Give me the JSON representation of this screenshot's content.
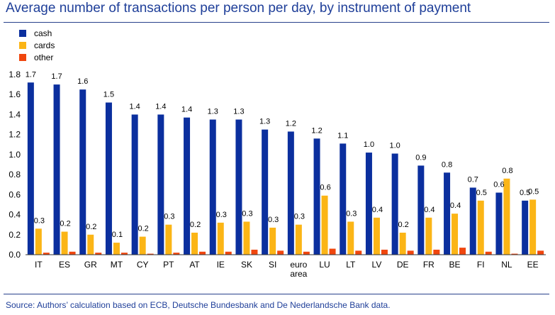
{
  "title": "Average number of transactions per person per day, by instrument of payment",
  "source": "Source: Authors’ calculation based on ECB, Deutsche Bundesbank and De Nederlandsche Bank data.",
  "colors": {
    "cash": "#0b2f9e",
    "cards": "#fbb516",
    "other": "#f0460e",
    "text": "#1f3f99",
    "axis": "#27408b"
  },
  "chart_data": {
    "type": "bar",
    "categories": [
      "IT",
      "ES",
      "GR",
      "MT",
      "CY",
      "PT",
      "AT",
      "IE",
      "SK",
      "SI",
      "euro area",
      "LU",
      "LT",
      "LV",
      "DE",
      "FR",
      "BE",
      "FI",
      "NL",
      "EE"
    ],
    "series": [
      {
        "name": "cash",
        "values": [
          1.72,
          1.7,
          1.65,
          1.52,
          1.4,
          1.4,
          1.37,
          1.35,
          1.35,
          1.25,
          1.23,
          1.16,
          1.11,
          1.02,
          1.01,
          0.89,
          0.82,
          0.67,
          0.62,
          0.54
        ],
        "labels": [
          "1.7",
          "1.7",
          "1.6",
          "1.5",
          "1.4",
          "1.4",
          "1.4",
          "1.3",
          "1.3",
          "1.3",
          "1.2",
          "1.2",
          "1.1",
          "1.0",
          "1.0",
          "0.9",
          "0.8",
          "0.7",
          "0.6",
          "0.5"
        ]
      },
      {
        "name": "cards",
        "values": [
          0.26,
          0.23,
          0.2,
          0.12,
          0.18,
          0.3,
          0.22,
          0.32,
          0.33,
          0.27,
          0.3,
          0.59,
          0.33,
          0.37,
          0.22,
          0.37,
          0.41,
          0.54,
          0.76,
          0.55
        ],
        "labels": [
          "0.3",
          "0.2",
          "0.2",
          "0.1",
          "0.2",
          "0.3",
          "0.2",
          "0.3",
          "0.3",
          "0.3",
          "0.3",
          "0.6",
          "0.3",
          "0.4",
          "0.2",
          "0.4",
          "0.4",
          "0.5",
          "0.8",
          "0.5"
        ]
      },
      {
        "name": "other",
        "values": [
          0.02,
          0.03,
          0.02,
          0.02,
          0.01,
          0.02,
          0.03,
          0.03,
          0.05,
          0.04,
          0.03,
          0.06,
          0.04,
          0.05,
          0.04,
          0.05,
          0.07,
          0.03,
          0.01,
          0.04
        ],
        "labels": []
      }
    ],
    "yticks": [
      "0.0",
      "0.2",
      "0.4",
      "0.6",
      "0.8",
      "1.0",
      "1.2",
      "1.4",
      "1.6",
      "1.8"
    ],
    "ylim": [
      0,
      1.8
    ],
    "legend_position": "top-left",
    "grid": false
  }
}
